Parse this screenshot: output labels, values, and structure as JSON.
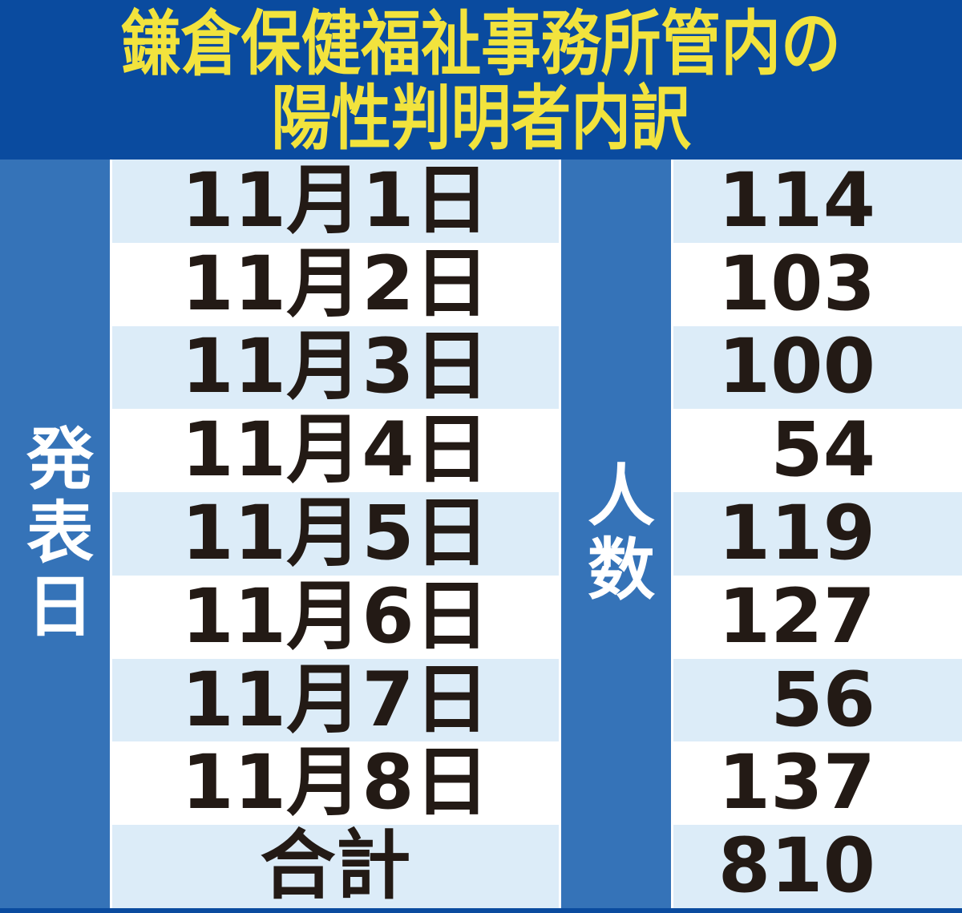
{
  "colors": {
    "navy": "#0a4b9f",
    "blue": "#3573b8",
    "light_blue": "#dcecf8",
    "yellow": "#f2e33d",
    "text_dark": "#231a15"
  },
  "title": {
    "line1": "鎌倉保健福祉事務所管内の",
    "line2": "陽性判明者内訳"
  },
  "table": {
    "date_column_header": "発表日",
    "count_column_header": "人数",
    "rows": [
      {
        "date": "11月1日",
        "count": 114
      },
      {
        "date": "11月2日",
        "count": 103
      },
      {
        "date": "11月3日",
        "count": 100
      },
      {
        "date": "11月4日",
        "count": 54
      },
      {
        "date": "11月5日",
        "count": 119
      },
      {
        "date": "11月6日",
        "count": 127
      },
      {
        "date": "11月7日",
        "count": 56
      },
      {
        "date": "11月8日",
        "count": 137
      },
      {
        "date": "合計",
        "count": 810
      }
    ]
  }
}
